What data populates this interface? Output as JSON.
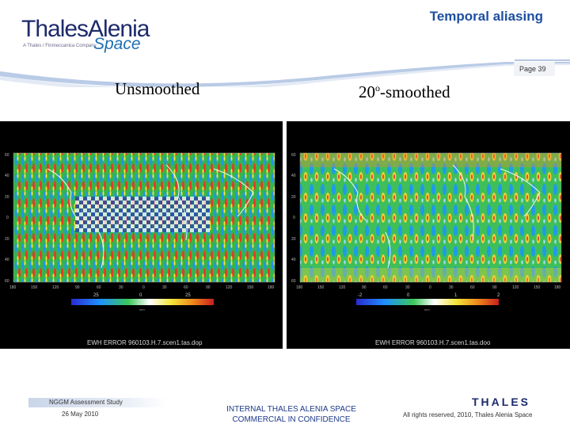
{
  "header": {
    "title": "Temporal aliasing",
    "page_label": "Page 39",
    "logo": {
      "main": "ThalesAlenia",
      "sub": "A Thales / Finmeccanica Company",
      "space": "Space"
    }
  },
  "captions": {
    "left": "Unsmoothed",
    "right_value": "20",
    "right_sup": "o",
    "right_suffix": "-smoothed"
  },
  "panels": {
    "left": {
      "filename": "EWH ERROR 960103.H.7.scen1.tas.dop",
      "lat_ticks": [
        "60",
        "40",
        "20",
        "0",
        "20",
        "40",
        "60"
      ],
      "lon_ticks": [
        "180",
        "150",
        "120",
        "90",
        "60",
        "30",
        "0",
        "30",
        "60",
        "90",
        "120",
        "150",
        "180"
      ],
      "scale_ticks": [
        "25",
        "0",
        "25"
      ],
      "scale_unit": "mm"
    },
    "right": {
      "filename": "EWH ERROR 960103.H.7.scen1.tas.doo",
      "lat_ticks": [
        "60",
        "40",
        "20",
        "0",
        "20",
        "40",
        "60"
      ],
      "lon_ticks": [
        "180",
        "150",
        "120",
        "90",
        "60",
        "30",
        "0",
        "30",
        "60",
        "90",
        "120",
        "150",
        "180"
      ],
      "scale_ticks": [
        "-2",
        "0",
        "1",
        "2"
      ],
      "scale_unit": "mm"
    }
  },
  "footer": {
    "project": "NGGM Assessment Study",
    "date": "26 May 2010",
    "conf_line1": "INTERNAL THALES ALENIA SPACE",
    "conf_line2": "COMMERCIAL IN CONFIDENCE",
    "company": "THALES",
    "rights": "All rights reserved, 2010, Thales Alenia Space"
  },
  "colors": {
    "title": "#1e4fa0",
    "brand_navy": "#1d2a6b",
    "brand_blue": "#1d6fb3",
    "panel_bg": "#000000"
  }
}
